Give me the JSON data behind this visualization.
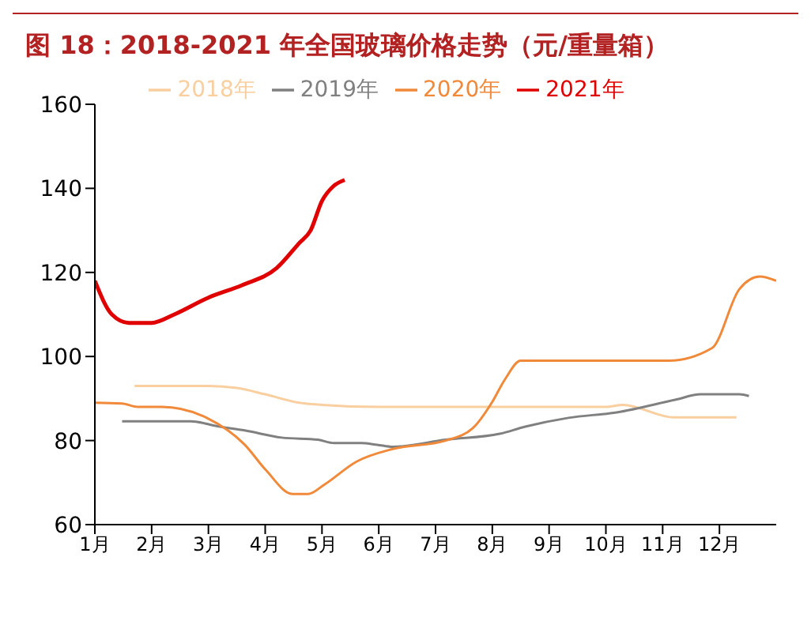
{
  "chart_data": {
    "type": "line",
    "title": "图 18：2018-2021 年全国玻璃价格走势（元/重量箱）",
    "xlim": [
      1,
      13
    ],
    "xticks": [
      {
        "value": 1,
        "label": "1月"
      },
      {
        "value": 2,
        "label": "2月"
      },
      {
        "value": 3,
        "label": "3月"
      },
      {
        "value": 4,
        "label": "4月"
      },
      {
        "value": 5,
        "label": "5月"
      },
      {
        "value": 6,
        "label": "6月"
      },
      {
        "value": 7,
        "label": "7月"
      },
      {
        "value": 8,
        "label": "8月"
      },
      {
        "value": 9,
        "label": "9月"
      },
      {
        "value": 10,
        "label": "10月"
      },
      {
        "value": 11,
        "label": "11月"
      },
      {
        "value": 12,
        "label": "12月"
      }
    ],
    "ylim": [
      60,
      160
    ],
    "yticks": [
      60,
      80,
      100,
      120,
      140,
      160
    ],
    "grid": false,
    "legend": "top",
    "marker": "none",
    "line_style": "solid",
    "series": [
      {
        "name": "2018年",
        "color": "#f9cf9f",
        "x": [
          1.7,
          2.5,
          3.0,
          3.5,
          4.0,
          4.6,
          5.0,
          6.0,
          7.0,
          8.0,
          9.0,
          10.0,
          10.3,
          11.2,
          12.3
        ],
        "values": [
          93,
          93,
          93,
          92.5,
          91,
          89,
          88.5,
          88,
          88,
          88,
          88,
          88,
          88.5,
          85.5,
          85.5
        ]
      },
      {
        "name": "2019年",
        "color": "#808080",
        "x": [
          1.48,
          2.69,
          3.16,
          3.64,
          4.29,
          4.93,
          5.21,
          5.69,
          5.97,
          6.25,
          7.18,
          8.13,
          8.58,
          9.34,
          10.19,
          11.22,
          11.67,
          12.35,
          12.52
        ],
        "values": [
          84.6,
          84.6,
          83.4,
          82.4,
          80.7,
          80.2,
          79.4,
          79.4,
          79,
          78.5,
          80.2,
          81.6,
          83.3,
          85.4,
          86.7,
          89.7,
          91,
          91,
          90.6
        ]
      },
      {
        "name": "2020年",
        "color": "#f08a3a",
        "x": [
          1,
          1.48,
          1.76,
          2.18,
          2.97,
          3.64,
          4.01,
          4.48,
          4.76,
          5.04,
          5.61,
          6.25,
          7.18,
          7.66,
          7.99,
          8.22,
          8.5,
          11.11,
          11.87,
          12.35,
          12.71,
          13
        ],
        "values": [
          89,
          88.8,
          88,
          88,
          85.4,
          79,
          73,
          67.3,
          67.3,
          69.5,
          75,
          78,
          80,
          83,
          89,
          94.5,
          99,
          99,
          102,
          116,
          119,
          118
        ]
      },
      {
        "name": "2021年",
        "color": "#e00000",
        "x": [
          1,
          1.3,
          1.6,
          2.0,
          2.4,
          3.0,
          3.6,
          4.2,
          4.6,
          4.8,
          5.0,
          5.2,
          5.4
        ],
        "values": [
          118,
          110,
          108,
          108,
          110,
          114,
          117,
          121,
          127,
          130,
          137,
          140.5,
          142
        ]
      }
    ]
  }
}
